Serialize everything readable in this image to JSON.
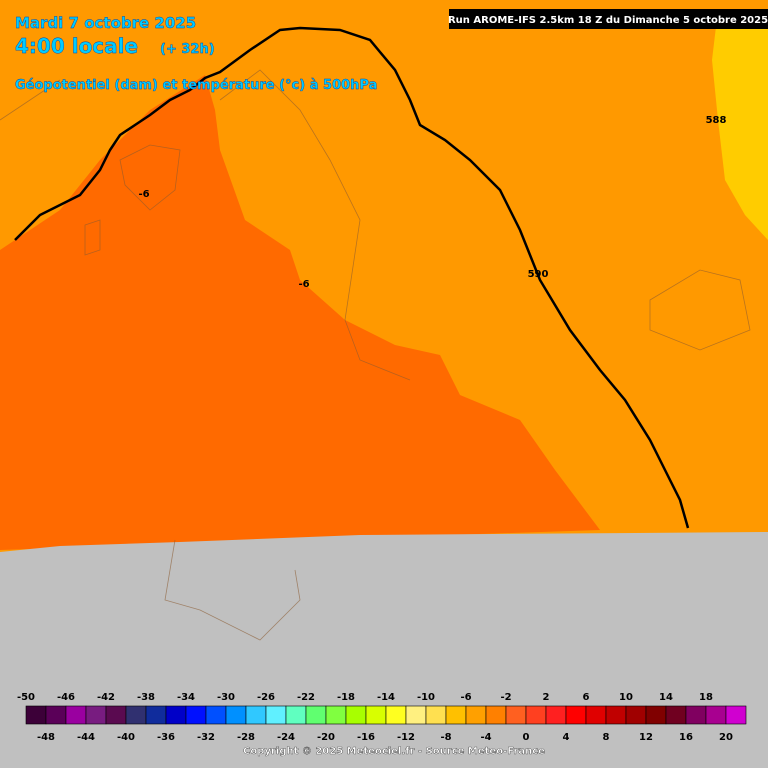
{
  "header": {
    "date": "Mardi 7 octobre 2025",
    "time": "4:00 locale",
    "lead": "(+ 32h)",
    "field": "Géopotentiel (dam) et température (°c) à 500hPa",
    "run": "Run AROME-IFS 2.5km 18 Z du Dimanche 5 octobre 2025"
  },
  "contour_labels": [
    588,
    590,
    -6,
    -6
  ],
  "colorbar": {
    "ticks": [
      -50,
      -48,
      -46,
      -44,
      -42,
      -40,
      -38,
      -36,
      -34,
      -32,
      -30,
      -28,
      -26,
      -24,
      -22,
      -20,
      -18,
      -16,
      -14,
      -12,
      -10,
      -8,
      -6,
      -4,
      -2,
      0,
      2,
      4,
      6,
      8,
      10,
      12,
      14,
      16,
      18,
      20
    ],
    "colors": [
      "#3c0038",
      "#5a0058",
      "#9a00a0",
      "#781c80",
      "#5a0a50",
      "#303070",
      "#102c9c",
      "#0000c8",
      "#0010ff",
      "#0050ff",
      "#0090ff",
      "#30c8ff",
      "#60f0ff",
      "#60ffc0",
      "#60ff70",
      "#80ff40",
      "#a8ff00",
      "#d8ff00",
      "#ffff20",
      "#fff080",
      "#ffe050",
      "#ffc000",
      "#ffa000",
      "#ff8000",
      "#ff6020",
      "#ff4020",
      "#ff2020",
      "#ff0000",
      "#e00000",
      "#c00000",
      "#a00000",
      "#800000",
      "#700020",
      "#800060",
      "#a80090",
      "#d000d0"
    ]
  },
  "copyright": "Copyright © 2025 Meteociel.fr - Source Meteo-France"
}
